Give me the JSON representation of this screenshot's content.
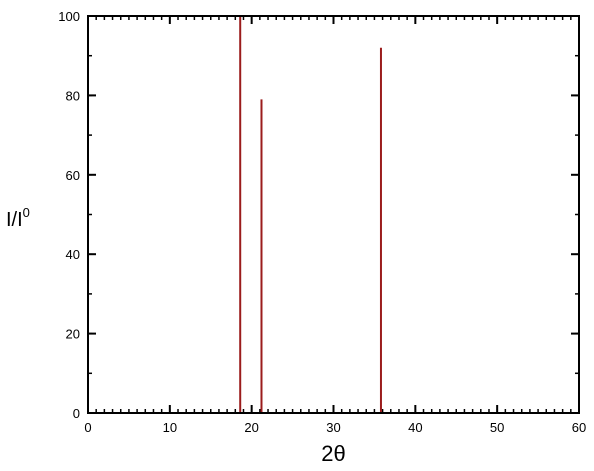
{
  "chart_data": {
    "type": "bar",
    "title": "",
    "xlabel": "2θ",
    "ylabel": "I/I",
    "ylabel_superscript": "0",
    "xlim": [
      0,
      60
    ],
    "ylim": [
      0,
      100
    ],
    "xticks": [
      0,
      10,
      20,
      30,
      40,
      50,
      60
    ],
    "yticks": [
      0,
      20,
      40,
      60,
      80,
      100
    ],
    "x_minor_step": 1,
    "y_minor_step": 10,
    "grid": false,
    "legend": "none",
    "line_color": "#9b1c1c",
    "peaks": [
      {
        "x": 18.6,
        "y": 100
      },
      {
        "x": 21.2,
        "y": 79
      },
      {
        "x": 35.8,
        "y": 92
      }
    ]
  }
}
